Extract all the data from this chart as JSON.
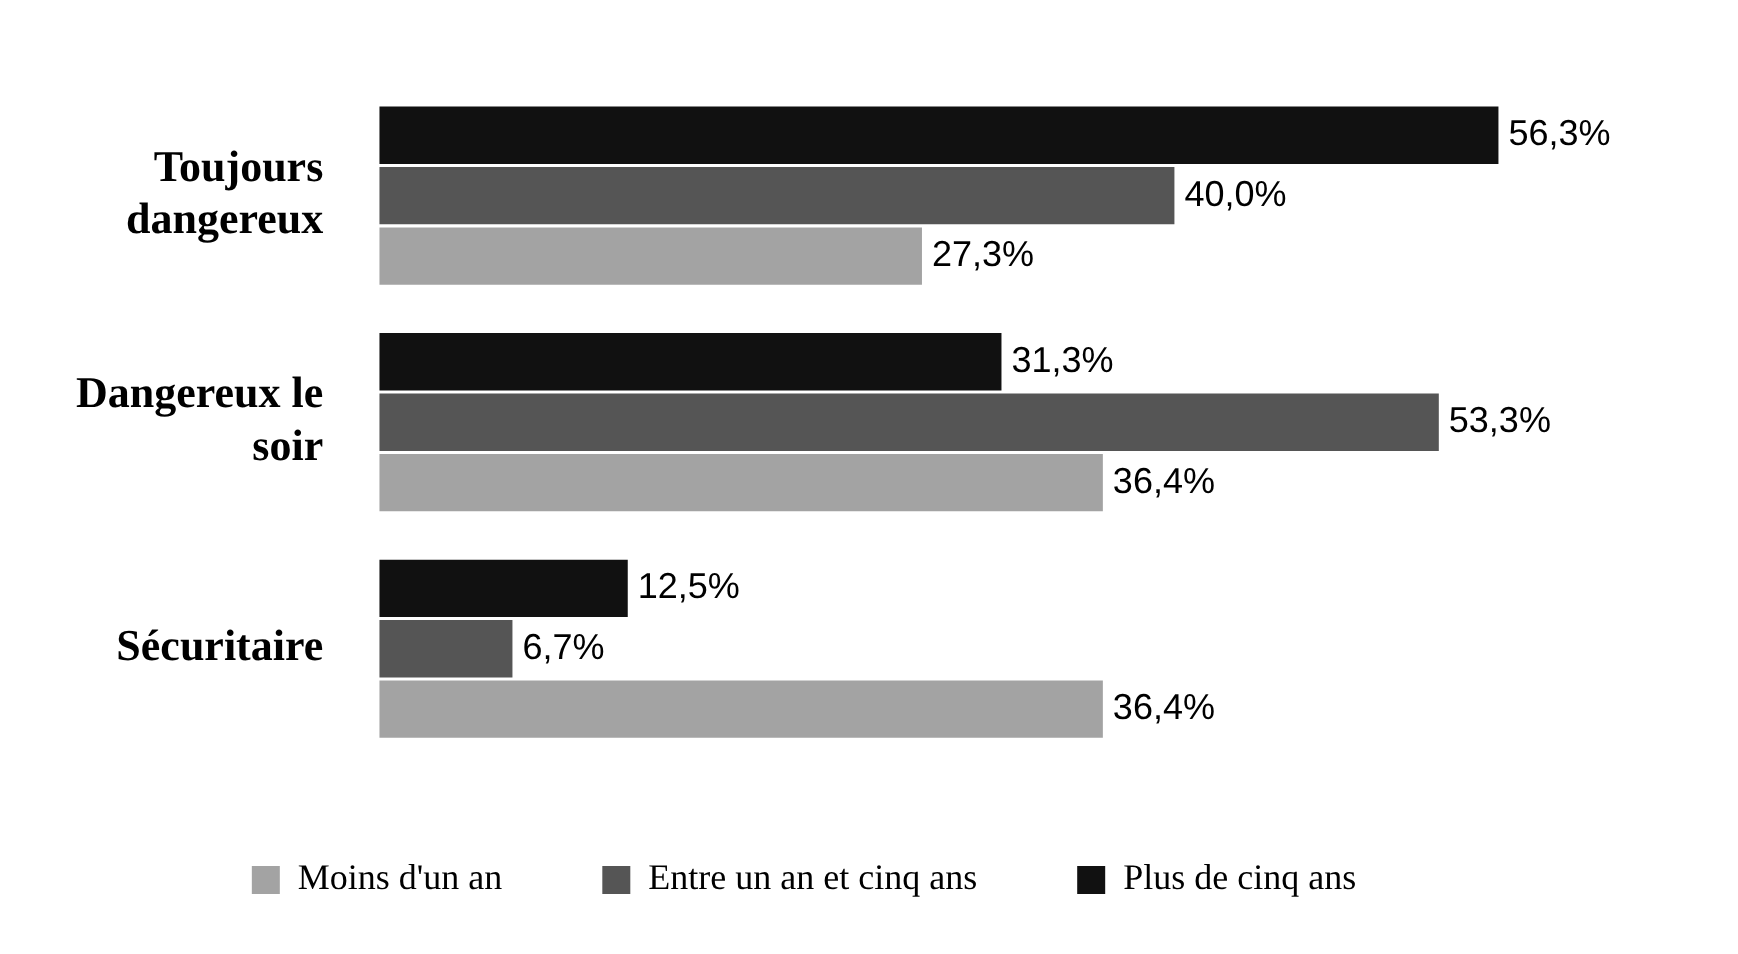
{
  "chart_data": {
    "type": "bar",
    "orientation": "horizontal",
    "categories": [
      "Toujours dangereux",
      "Dangereux le soir",
      "Sécuritaire"
    ],
    "series": [
      {
        "name": "Moins d'un an",
        "color": "#a3a3a3",
        "values": [
          27.3,
          36.4,
          36.4
        ],
        "value_labels": [
          "27,3%",
          "36,4%",
          "36,4%"
        ]
      },
      {
        "name": "Entre un an et cinq ans",
        "color": "#555555",
        "values": [
          40.0,
          53.3,
          6.7
        ],
        "value_labels": [
          "40,0%",
          "53,3%",
          "6,7%"
        ]
      },
      {
        "name": "Plus de cinq ans",
        "color": "#111111",
        "values": [
          56.3,
          31.3,
          12.5
        ],
        "value_labels": [
          "56,3%",
          "31,3%",
          "12,5%"
        ]
      }
    ],
    "legend": "bottom"
  }
}
